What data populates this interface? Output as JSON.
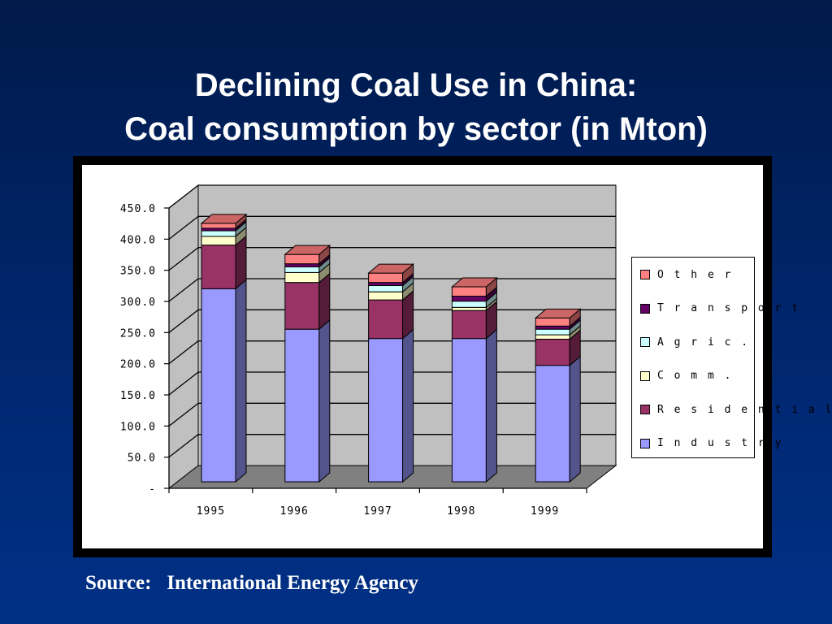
{
  "slide": {
    "title_line1": "Declining Coal Use in China:",
    "title_line2": "Coal consumption by sector (in Mton)",
    "source": "Source:   International Energy Agency"
  },
  "colors": {
    "background": "#00256b",
    "chart_wall": "#c0c0c0",
    "chart_floor": "#808080"
  },
  "chart_data": {
    "type": "bar",
    "stacked": true,
    "three_d": true,
    "title": "",
    "xlabel": "",
    "ylabel": "",
    "categories": [
      "1995",
      "1996",
      "1997",
      "1998",
      "1999"
    ],
    "ylim": [
      0,
      450
    ],
    "yticks": [
      "-",
      "50.0",
      "100.0",
      "150.0",
      "200.0",
      "250.0",
      "300.0",
      "350.0",
      "400.0",
      "450.0"
    ],
    "grid": true,
    "legend_position": "right",
    "series": [
      {
        "name": "Industry",
        "legend_label": "I n d u s t r y",
        "color": "#9999ff",
        "values": [
          310,
          245,
          230,
          230,
          187
        ]
      },
      {
        "name": "Residential",
        "legend_label": "R e s i d e n t i a l",
        "color": "#993366",
        "values": [
          70,
          75,
          62,
          45,
          42
        ]
      },
      {
        "name": "Comm.",
        "legend_label": "C o m m .",
        "color": "#ffffcc",
        "values": [
          14,
          16,
          13,
          5,
          7
        ]
      },
      {
        "name": "Agric.",
        "legend_label": "A g r i c .",
        "color": "#ccffff",
        "values": [
          9,
          9,
          10,
          10,
          9
        ]
      },
      {
        "name": "Transport",
        "legend_label": "T r a n s p o r t",
        "color": "#660066",
        "values": [
          4,
          5,
          5,
          8,
          5
        ]
      },
      {
        "name": "Other",
        "legend_label": "O t h e r",
        "color": "#ff8080",
        "values": [
          8,
          15,
          15,
          15,
          13
        ]
      }
    ]
  }
}
